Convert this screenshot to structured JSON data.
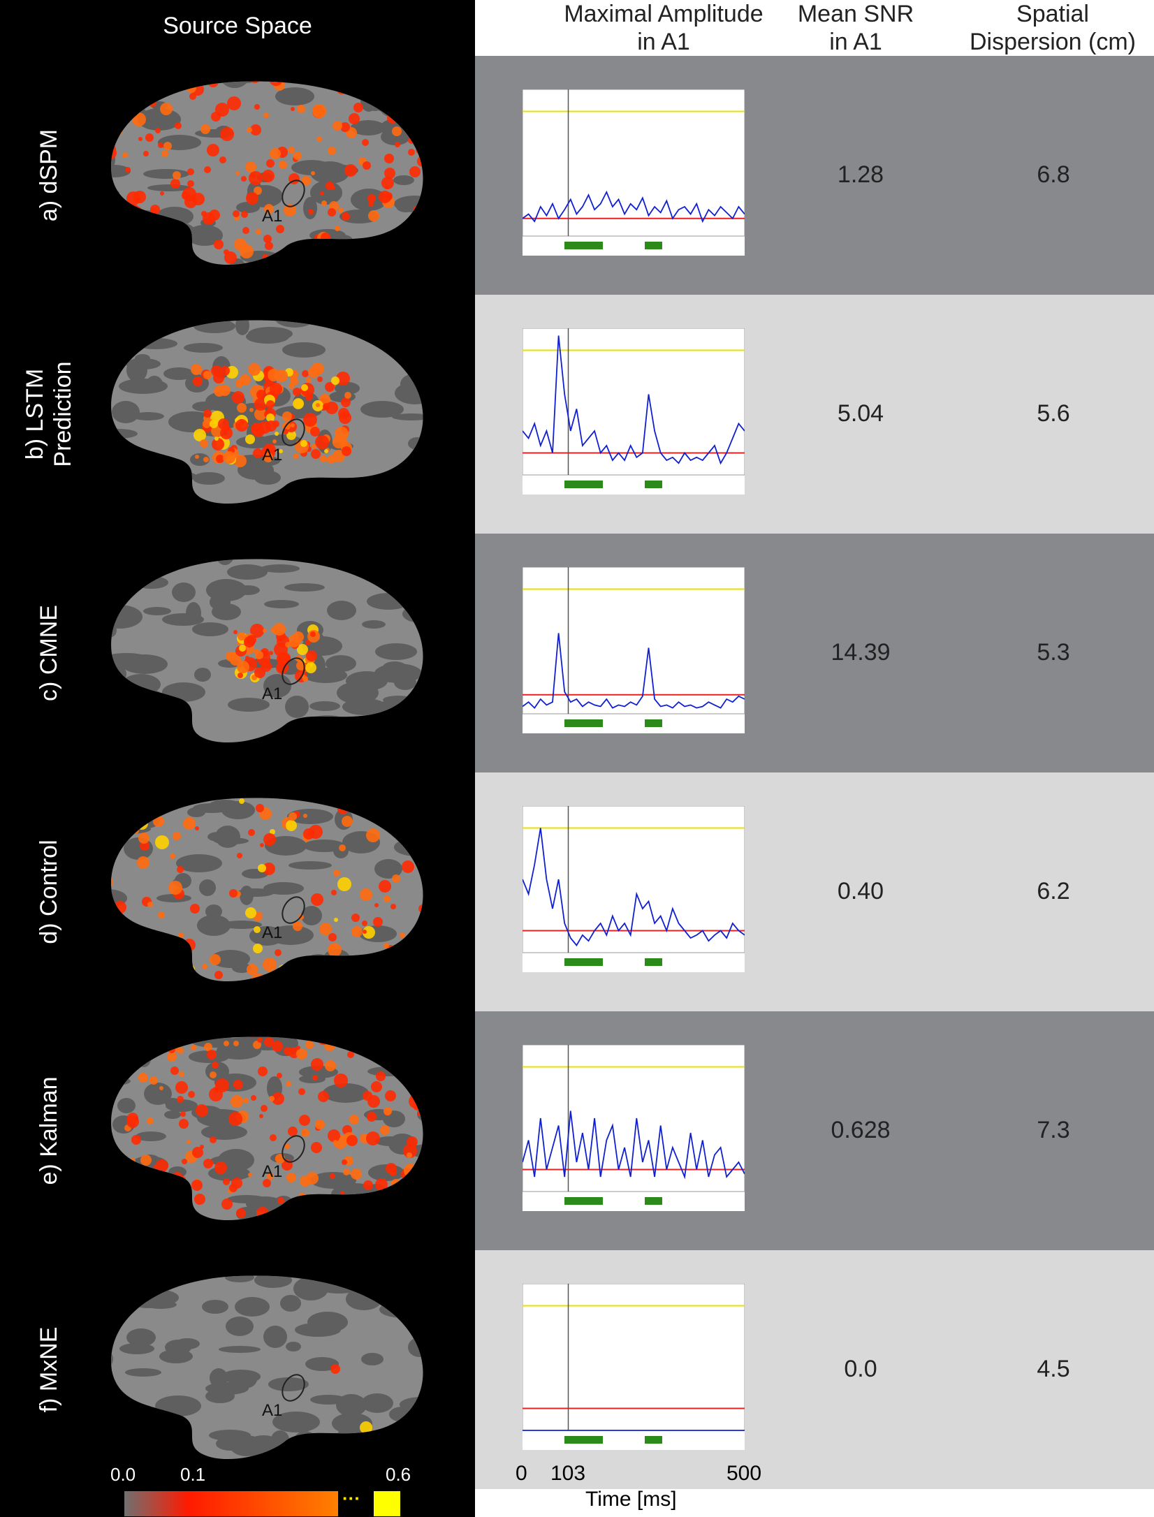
{
  "left_title": "Source Space",
  "headers": {
    "max_amplitude": [
      "Maximal Amplitude",
      "in A1"
    ],
    "mean_snr": [
      "Mean SNR",
      "in A1"
    ],
    "spatial_dispersion": [
      "Spatial",
      "Dispersion (cm)"
    ]
  },
  "region_label": "A1",
  "rows": [
    {
      "label": [
        "a) dSPM"
      ],
      "mean_snr": "1.28",
      "spatial_dispersion": "6.8",
      "activation": "dense",
      "background": "#88898d"
    },
    {
      "label": [
        "b) LSTM",
        "Prediction"
      ],
      "mean_snr": "5.04",
      "spatial_dispersion": "5.6",
      "activation": "focal-strong",
      "background": "#d9d9d9"
    },
    {
      "label": [
        "c) CMNE"
      ],
      "mean_snr": "14.39",
      "spatial_dispersion": "5.3",
      "activation": "focal",
      "background": "#88898d"
    },
    {
      "label": [
        "d) Control"
      ],
      "mean_snr": "0.40",
      "spatial_dispersion": "6.2",
      "activation": "medium",
      "background": "#d9d9d9"
    },
    {
      "label": [
        "e) Kalman"
      ],
      "mean_snr": "0.628",
      "spatial_dispersion": "7.3",
      "activation": "dense",
      "background": "#88898d"
    },
    {
      "label": [
        "f) MxNE"
      ],
      "mean_snr": "0.0",
      "spatial_dispersion": "4.5",
      "activation": "sparse",
      "background": "#d9d9d9"
    }
  ],
  "colorbar": {
    "ticks": [
      "0.0",
      "0.1",
      "0.6"
    ],
    "ellipsis": "···",
    "colors": [
      "#6e6e6e",
      "#ff0000",
      "#ff7a00",
      "#ffff00"
    ]
  },
  "time_axis": {
    "ticks": [
      "0",
      "103",
      "500"
    ],
    "label": "Time [ms]"
  },
  "chart_data": [
    {
      "type": "line",
      "title": "a) dSPM",
      "series": [
        {
          "values": [
            0.12,
            0.15,
            0.1,
            0.2,
            0.14,
            0.22,
            0.12,
            0.18,
            0.25,
            0.15,
            0.2,
            0.28,
            0.18,
            0.22,
            0.3,
            0.2,
            0.25,
            0.15,
            0.22,
            0.18,
            0.26,
            0.14,
            0.2,
            0.16,
            0.24,
            0.12,
            0.18,
            0.2,
            0.15,
            0.22,
            0.1,
            0.18,
            0.14,
            0.2,
            0.16,
            0.12,
            0.2,
            0.15
          ]
        }
      ],
      "xlim": [
        0,
        500
      ],
      "marker_x": 103,
      "ylim": [
        0,
        1
      ],
      "threshold_upper": 0.85,
      "threshold_lower": 0.12
    },
    {
      "type": "line",
      "title": "b) LSTM Prediction",
      "series": [
        {
          "values": [
            0.3,
            0.25,
            0.35,
            0.2,
            0.3,
            0.15,
            0.95,
            0.55,
            0.3,
            0.45,
            0.2,
            0.25,
            0.3,
            0.15,
            0.2,
            0.1,
            0.15,
            0.1,
            0.2,
            0.12,
            0.15,
            0.55,
            0.3,
            0.15,
            0.1,
            0.12,
            0.08,
            0.15,
            0.1,
            0.12,
            0.1,
            0.15,
            0.2,
            0.08,
            0.15,
            0.25,
            0.35,
            0.3
          ]
        }
      ],
      "xlim": [
        0,
        500
      ],
      "marker_x": 103,
      "ylim": [
        0,
        1
      ],
      "threshold_upper": 0.85,
      "threshold_lower": 0.15
    },
    {
      "type": "line",
      "title": "c) CMNE",
      "series": [
        {
          "values": [
            0.05,
            0.08,
            0.04,
            0.1,
            0.06,
            0.08,
            0.55,
            0.15,
            0.08,
            0.1,
            0.05,
            0.08,
            0.06,
            0.05,
            0.1,
            0.04,
            0.06,
            0.05,
            0.08,
            0.06,
            0.12,
            0.45,
            0.1,
            0.05,
            0.06,
            0.04,
            0.08,
            0.05,
            0.06,
            0.04,
            0.05,
            0.08,
            0.06,
            0.04,
            0.1,
            0.08,
            0.12,
            0.1
          ]
        }
      ],
      "xlim": [
        0,
        500
      ],
      "marker_x": 103,
      "ylim": [
        0,
        1
      ],
      "threshold_upper": 0.85,
      "threshold_lower": 0.13
    },
    {
      "type": "line",
      "title": "d) Control",
      "series": [
        {
          "values": [
            0.5,
            0.4,
            0.6,
            0.85,
            0.5,
            0.3,
            0.5,
            0.2,
            0.1,
            0.05,
            0.12,
            0.08,
            0.15,
            0.2,
            0.12,
            0.25,
            0.15,
            0.2,
            0.12,
            0.4,
            0.3,
            0.35,
            0.2,
            0.25,
            0.15,
            0.3,
            0.2,
            0.15,
            0.1,
            0.12,
            0.15,
            0.08,
            0.12,
            0.15,
            0.1,
            0.2,
            0.15,
            0.12
          ]
        }
      ],
      "xlim": [
        0,
        500
      ],
      "marker_x": 103,
      "ylim": [
        0,
        1
      ],
      "threshold_upper": 0.85,
      "threshold_lower": 0.15
    },
    {
      "type": "line",
      "title": "e) Kalman",
      "series": [
        {
          "values": [
            0.2,
            0.35,
            0.1,
            0.5,
            0.15,
            0.3,
            0.45,
            0.1,
            0.55,
            0.2,
            0.4,
            0.15,
            0.5,
            0.1,
            0.35,
            0.45,
            0.15,
            0.3,
            0.1,
            0.5,
            0.2,
            0.35,
            0.1,
            0.45,
            0.15,
            0.3,
            0.2,
            0.1,
            0.4,
            0.15,
            0.35,
            0.1,
            0.25,
            0.3,
            0.1,
            0.15,
            0.2,
            0.12
          ]
        }
      ],
      "xlim": [
        0,
        500
      ],
      "marker_x": 103,
      "ylim": [
        0,
        1
      ],
      "threshold_upper": 0.85,
      "threshold_lower": 0.15
    },
    {
      "type": "line",
      "title": "f) MxNE",
      "series": [
        {
          "values": [
            0,
            0,
            0,
            0,
            0,
            0,
            0,
            0,
            0,
            0,
            0,
            0,
            0,
            0,
            0,
            0,
            0,
            0,
            0,
            0
          ]
        }
      ],
      "xlim": [
        0,
        500
      ],
      "marker_x": 103,
      "ylim": [
        0,
        1
      ],
      "threshold_upper": 0.85,
      "threshold_lower": 0.15
    }
  ]
}
